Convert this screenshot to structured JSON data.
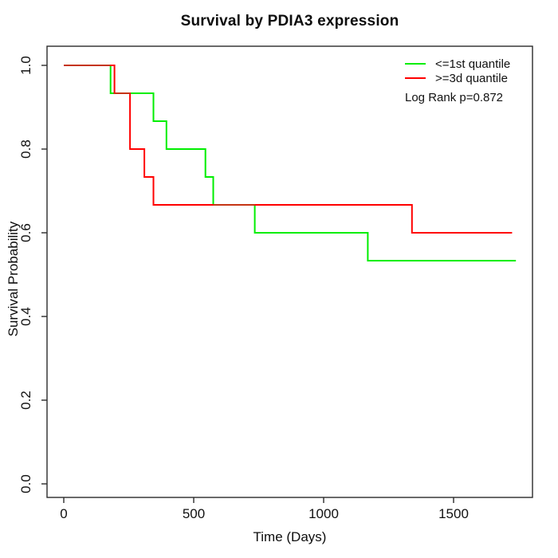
{
  "figure": {
    "background": "#ffffff",
    "axis_color": "#2b2b2b",
    "text_color": "#111111"
  },
  "chart_data": {
    "type": "line",
    "subtype": "kaplan-meier-step-curves",
    "title": "Survival by PDIA3 expression",
    "xlabel": "Time (Days)",
    "ylabel": "Survival Probability",
    "grid": false,
    "legend_position": "top-right-inside",
    "x_ticks": {
      "values": [
        0,
        500,
        1000,
        1500
      ],
      "labels": [
        "0",
        "500",
        "1000",
        "1500"
      ]
    },
    "y_ticks": {
      "values": [
        0.0,
        0.2,
        0.4,
        0.6,
        0.8,
        1.0
      ],
      "labels": [
        "0.0",
        "0.2",
        "0.4",
        "0.6",
        "0.8",
        "1.0"
      ]
    },
    "xlim_days": [
      0,
      1740
    ],
    "ylim": [
      0,
      1
    ],
    "series": [
      {
        "name": "<=1st quantile",
        "color": "#00ee00",
        "steps_time_survival": [
          [
            0,
            1.0
          ],
          [
            180,
            0.9333
          ],
          [
            345,
            0.8667
          ],
          [
            395,
            0.8
          ],
          [
            545,
            0.7333
          ],
          [
            575,
            0.6667
          ],
          [
            735,
            0.6
          ],
          [
            1170,
            0.5333
          ]
        ],
        "end_time": 1740
      },
      {
        "name": ">=3d quantile",
        "color": "#ff0000",
        "steps_time_survival": [
          [
            0,
            1.0
          ],
          [
            195,
            0.9333
          ],
          [
            255,
            0.8
          ],
          [
            310,
            0.7333
          ],
          [
            345,
            0.6667
          ],
          [
            1340,
            0.6
          ]
        ],
        "end_time": 1725
      }
    ],
    "overlap_color": "#c53414",
    "overlap_segments_time_survival": [
      [
        0,
        180,
        1.0
      ],
      [
        195,
        255,
        0.9333
      ],
      [
        575,
        735,
        0.6667
      ]
    ],
    "annotation": "Log Rank p=0.872"
  }
}
